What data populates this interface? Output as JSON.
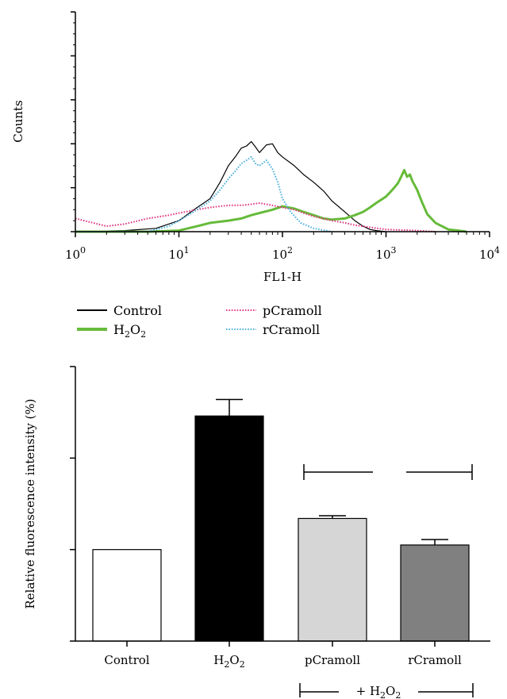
{
  "chart_data": [
    {
      "type": "line",
      "xlabel": "FL1-H",
      "ylabel": "Counts",
      "xscale": "log",
      "xlim": [
        1,
        10000
      ],
      "ylim": [
        0,
        200
      ],
      "x_ticks": [
        {
          "base": "10",
          "exp": "0"
        },
        {
          "base": "10",
          "exp": "1"
        },
        {
          "base": "10",
          "exp": "2"
        },
        {
          "base": "10",
          "exp": "3"
        },
        {
          "base": "10",
          "exp": "4"
        }
      ],
      "y_ticks": [
        "0",
        "40",
        "80",
        "120",
        "160",
        "200"
      ],
      "grid": false,
      "legend_position": "bottom",
      "series": [
        {
          "name": "Control",
          "color": "#000000",
          "style": "solid",
          "x": [
            1,
            3,
            6,
            10,
            15,
            20,
            25,
            30,
            35,
            40,
            45,
            50,
            55,
            60,
            70,
            80,
            90,
            100,
            130,
            160,
            200,
            250,
            300,
            400,
            500,
            600,
            700,
            800,
            1000
          ],
          "y": [
            0,
            1,
            3,
            10,
            22,
            30,
            45,
            60,
            68,
            76,
            78,
            82,
            77,
            72,
            79,
            80,
            72,
            68,
            60,
            52,
            45,
            37,
            28,
            18,
            10,
            5,
            2,
            1,
            0
          ]
        },
        {
          "name": "H2O2",
          "color": "#66bb3a",
          "style": "solid",
          "x": [
            1,
            5,
            10,
            15,
            20,
            30,
            40,
            50,
            60,
            80,
            100,
            130,
            160,
            200,
            250,
            300,
            400,
            500,
            600,
            700,
            800,
            1000,
            1100,
            1200,
            1300,
            1400,
            1500,
            1600,
            1700,
            1800,
            2000,
            2200,
            2500,
            3000,
            4000,
            5000,
            6000
          ],
          "y": [
            0,
            0,
            1,
            5,
            8,
            10,
            12,
            15,
            17,
            20,
            23,
            21,
            18,
            15,
            12,
            11,
            12,
            15,
            18,
            22,
            26,
            32,
            36,
            40,
            44,
            50,
            56,
            50,
            52,
            46,
            38,
            28,
            16,
            8,
            2,
            1,
            0
          ]
        },
        {
          "name": "pCramoll",
          "color": "#e3387f",
          "style": "dotted",
          "x": [
            1,
            2,
            3,
            5,
            8,
            10,
            15,
            20,
            30,
            40,
            50,
            60,
            80,
            100,
            130,
            160,
            200,
            300,
            400,
            500,
            700,
            1000,
            2000,
            3000
          ],
          "y": [
            12,
            5,
            7,
            12,
            15,
            17,
            20,
            22,
            24,
            24,
            25,
            26,
            24,
            22,
            20,
            17,
            14,
            10,
            8,
            6,
            4,
            2,
            1,
            0
          ]
        },
        {
          "name": "rCramoll",
          "color": "#4db0dd",
          "style": "dotted",
          "x": [
            1,
            5,
            8,
            10,
            15,
            20,
            25,
            30,
            35,
            40,
            45,
            50,
            55,
            60,
            70,
            80,
            90,
            100,
            120,
            150,
            200,
            300
          ],
          "y": [
            0,
            0,
            5,
            10,
            20,
            28,
            38,
            48,
            55,
            62,
            65,
            68,
            62,
            60,
            65,
            57,
            45,
            30,
            18,
            8,
            3,
            0
          ]
        }
      ]
    },
    {
      "type": "bar",
      "ylabel": "Relative fluorescence intensity (%)",
      "ylim": [
        0,
        300
      ],
      "y_ticks": [
        "0",
        "100",
        "200",
        "300"
      ],
      "categories": [
        {
          "pre": "Control",
          "s1": "",
          "mid": "",
          "s2": "",
          "post": ""
        },
        {
          "pre": "H",
          "s1": "2",
          "mid": "O",
          "s2": "2",
          "post": ""
        },
        {
          "pre": "pCramoll",
          "s1": "",
          "mid": "",
          "s2": "",
          "post": ""
        },
        {
          "pre": "rCramoll",
          "s1": "",
          "mid": "",
          "s2": "",
          "post": ""
        }
      ],
      "values": [
        100,
        246,
        134,
        105
      ],
      "errors": [
        0,
        18,
        3,
        6
      ],
      "colors": [
        "#ffffff",
        "#000000",
        "#d6d6d6",
        "#808080"
      ],
      "significance_label": "*",
      "hash_label": "#",
      "group_label": {
        "pre": "+ H",
        "s1": "2",
        "mid": "O",
        "s2": "2",
        "post": ""
      }
    }
  ],
  "legend": [
    {
      "pre": "Control",
      "s1": "",
      "mid": "",
      "s2": "",
      "post": "",
      "color": "#000000",
      "style": "solid"
    },
    {
      "pre": "pCramoll",
      "s1": "",
      "mid": "",
      "s2": "",
      "post": "",
      "color": "#e3387f",
      "style": "dotted"
    },
    {
      "pre": "H",
      "s1": "2",
      "mid": "O",
      "s2": "2",
      "post": "",
      "color": "#66bb3a",
      "style": "solid"
    },
    {
      "pre": "rCramoll",
      "s1": "",
      "mid": "",
      "s2": "",
      "post": "",
      "color": "#4db0dd",
      "style": "dotted"
    }
  ]
}
